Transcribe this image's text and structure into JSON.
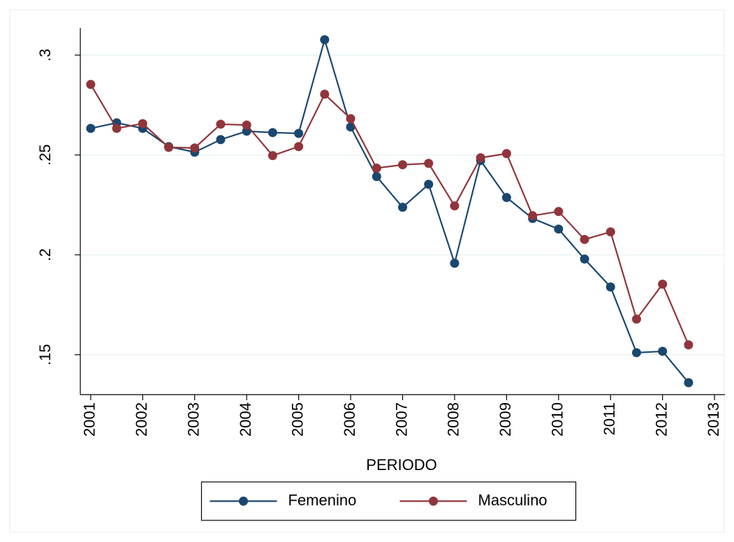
{
  "chart_data": {
    "type": "line",
    "x_label": "PERIODO",
    "x": [
      2001,
      2001.5,
      2002,
      2002.5,
      2003,
      2003.5,
      2004,
      2004.5,
      2005,
      2005.5,
      2006,
      2006.5,
      2007,
      2007.5,
      2008,
      2008.5,
      2009,
      2009.5,
      2010,
      2010.5,
      2011,
      2011.5,
      2012,
      2012.5
    ],
    "series": [
      {
        "name": "Femenino",
        "color": "#1a476f",
        "values": [
          0.2633,
          0.2661,
          0.2633,
          0.2542,
          0.2514,
          0.2577,
          0.2619,
          0.2612,
          0.2608,
          0.3077,
          0.264,
          0.2392,
          0.2238,
          0.2353,
          0.1958,
          0.2472,
          0.2287,
          0.2182,
          0.2129,
          0.1979,
          0.1839,
          0.151,
          0.1517,
          0.136
        ]
      },
      {
        "name": "Masculino",
        "color": "#90353b",
        "values": [
          0.2853,
          0.2633,
          0.2657,
          0.2538,
          0.2535,
          0.2654,
          0.265,
          0.2497,
          0.2542,
          0.2804,
          0.2682,
          0.2434,
          0.2451,
          0.2458,
          0.2245,
          0.2486,
          0.2507,
          0.2196,
          0.2217,
          0.2077,
          0.2115,
          0.1678,
          0.1853,
          0.1549
        ]
      }
    ],
    "xlim": [
      2000.8,
      2013.2
    ],
    "xticks": [
      2001,
      2002,
      2003,
      2004,
      2005,
      2006,
      2007,
      2008,
      2009,
      2010,
      2011,
      2012,
      2013
    ],
    "ylim": [
      0.13,
      0.3136
    ],
    "yticks": [
      {
        "value": 0.15,
        "label": ".15"
      },
      {
        "value": 0.2,
        "label": ".2"
      },
      {
        "value": 0.25,
        "label": ".25"
      },
      {
        "value": 0.3,
        "label": ".3"
      }
    ],
    "grid": true,
    "legend": "bottom"
  }
}
